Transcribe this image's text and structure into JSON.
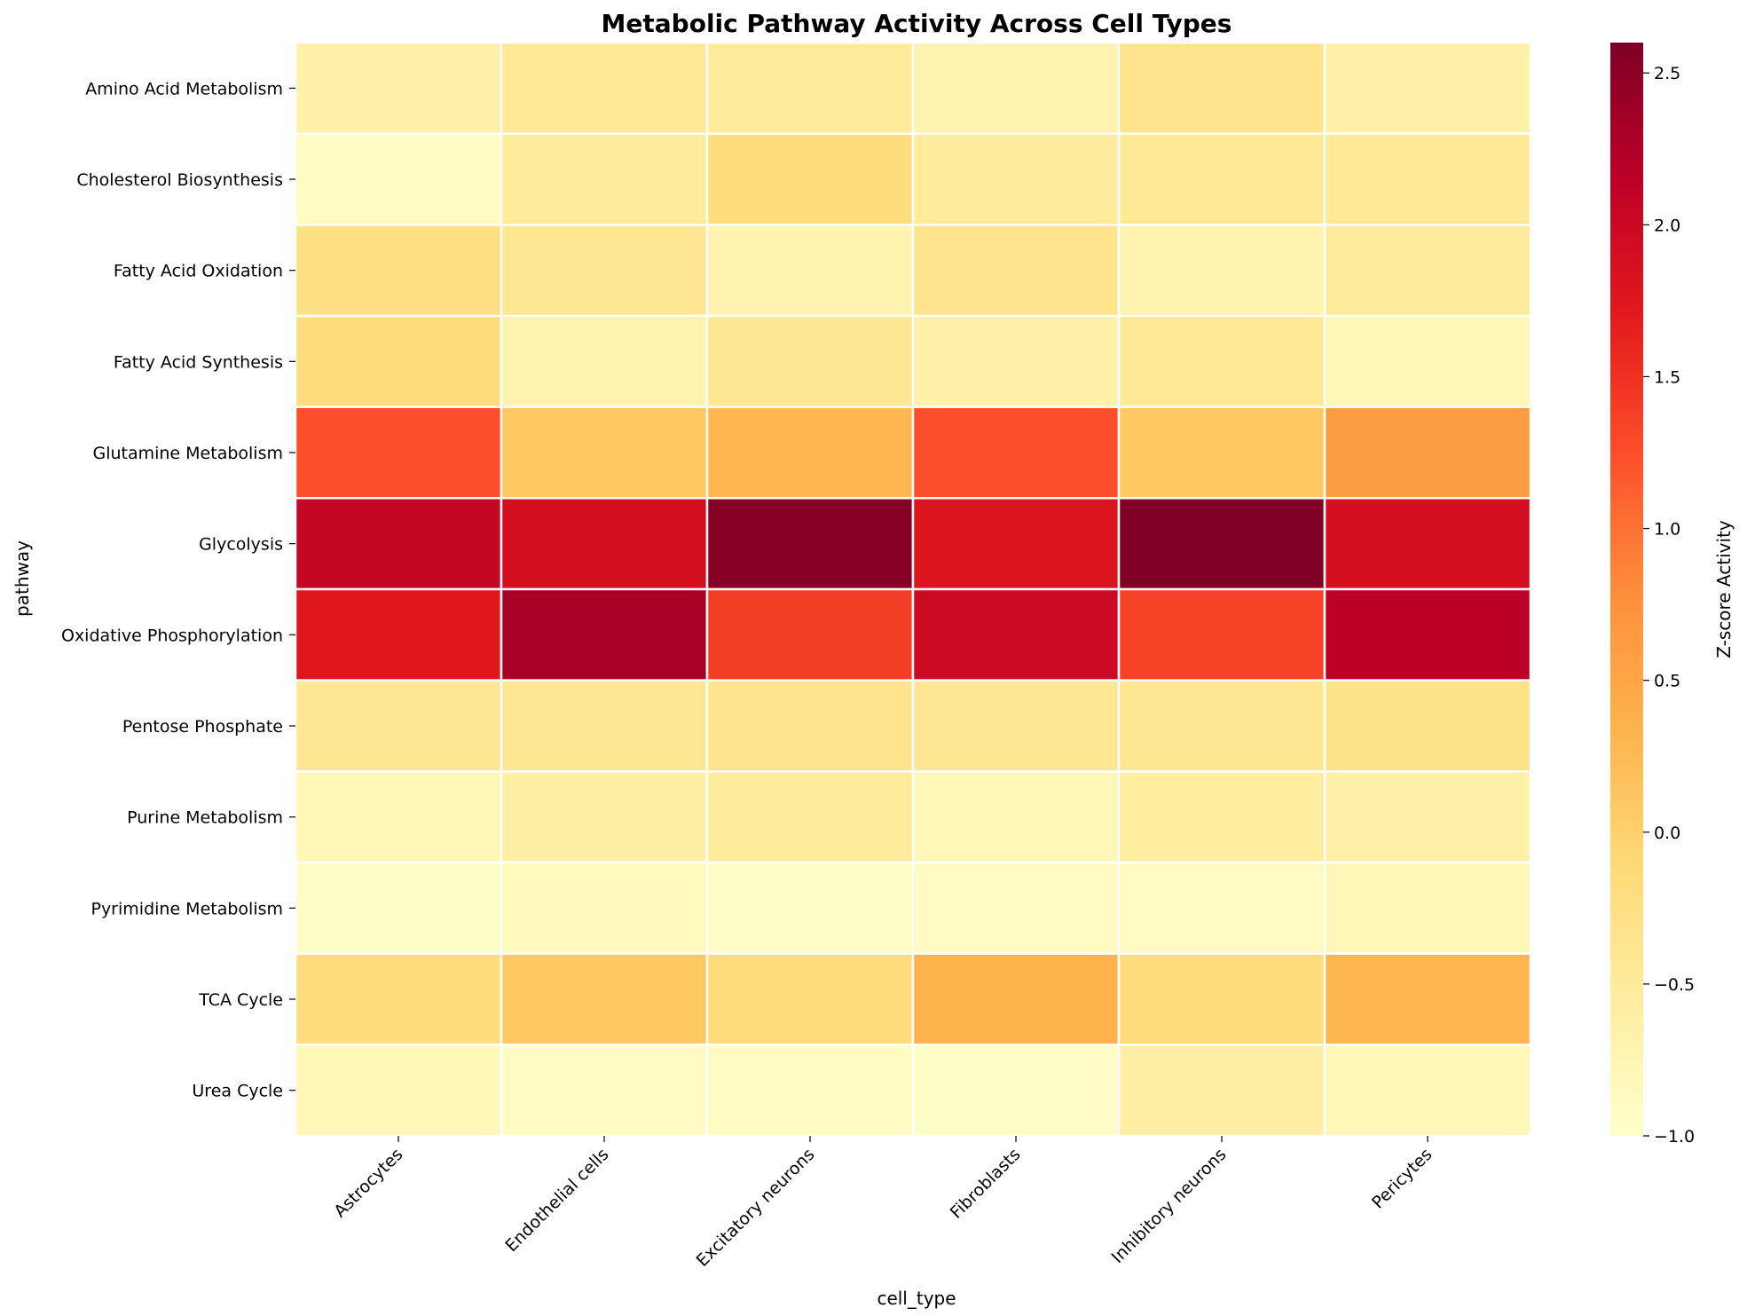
{
  "chart_data": {
    "type": "heatmap",
    "title": "Metabolic Pathway Activity Across Cell Types",
    "xlabel": "cell_type",
    "ylabel": "pathway",
    "colorbar_label": "Z-score Activity",
    "colormap": "YlOrRd",
    "vmin": -1.0,
    "vmax": 2.6,
    "colorbar_ticks": [
      -1.0,
      -0.5,
      0.0,
      0.5,
      1.0,
      1.5,
      2.0,
      2.5
    ],
    "colorbar_tick_labels": [
      "−1.0",
      "−0.5",
      "0.0",
      "0.5",
      "1.0",
      "1.5",
      "2.0",
      "2.5"
    ],
    "columns": [
      "Astrocytes",
      "Endothelial cells",
      "Excitatory neurons",
      "Fibroblasts",
      "Inhibitory neurons",
      "Pericytes"
    ],
    "rows": [
      "Amino Acid Metabolism",
      "Cholesterol Biosynthesis",
      "Fatty Acid Oxidation",
      "Fatty Acid Synthesis",
      "Glutamine Metabolism",
      "Glycolysis",
      "Oxidative Phosphorylation",
      "Pentose Phosphate",
      "Purine Metabolism",
      "Pyrimidine Metabolism",
      "TCA Cycle",
      "Urea Cycle"
    ],
    "values": [
      [
        -0.65,
        -0.45,
        -0.5,
        -0.7,
        -0.35,
        -0.65
      ],
      [
        -0.9,
        -0.5,
        -0.2,
        -0.5,
        -0.45,
        -0.45
      ],
      [
        -0.25,
        -0.4,
        -0.7,
        -0.35,
        -0.7,
        -0.5
      ],
      [
        -0.2,
        -0.7,
        -0.4,
        -0.65,
        -0.45,
        -0.8
      ],
      [
        1.25,
        0.1,
        0.3,
        1.25,
        0.1,
        0.6
      ],
      [
        2.05,
        1.9,
        2.55,
        1.8,
        2.6,
        1.9
      ],
      [
        1.75,
        2.3,
        1.4,
        2.0,
        1.35,
        2.15
      ],
      [
        -0.4,
        -0.4,
        -0.35,
        -0.4,
        -0.4,
        -0.3
      ],
      [
        -0.8,
        -0.6,
        -0.5,
        -0.8,
        -0.55,
        -0.65
      ],
      [
        -0.95,
        -0.85,
        -0.95,
        -0.9,
        -0.9,
        -0.8
      ],
      [
        -0.2,
        0.1,
        -0.15,
        0.35,
        -0.15,
        0.3
      ],
      [
        -0.8,
        -0.9,
        -0.9,
        -0.95,
        -0.6,
        -0.8
      ]
    ],
    "grid": true,
    "legend": "colorbar-right"
  }
}
